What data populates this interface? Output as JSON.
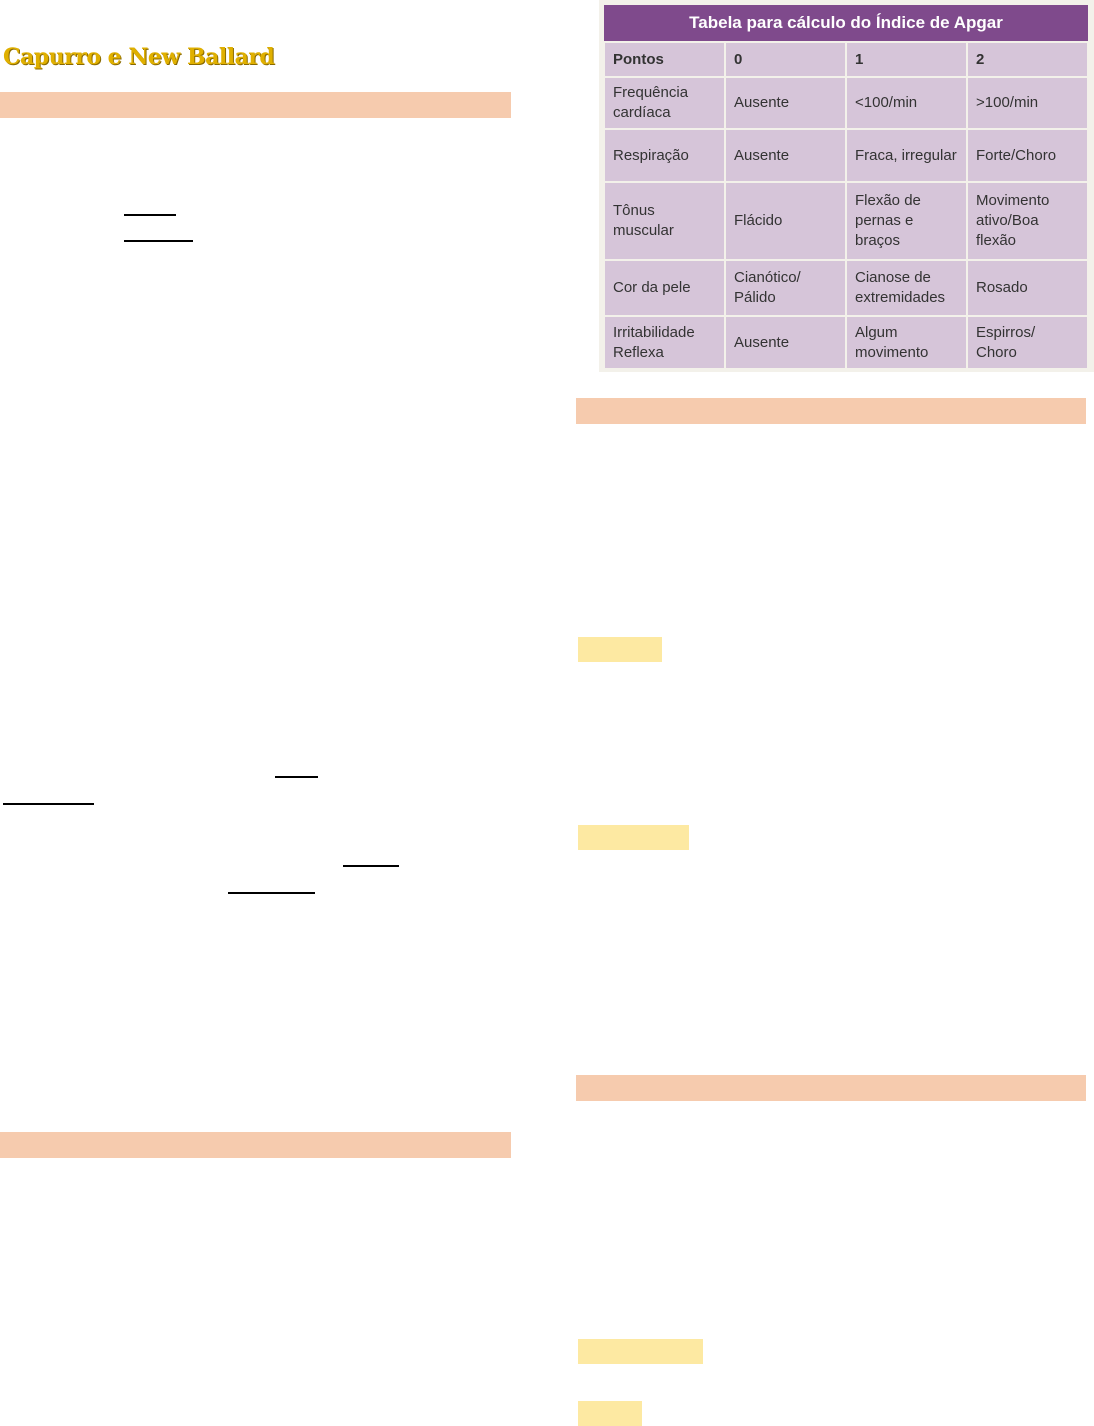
{
  "title": "Capurro e New Ballard",
  "apgar_table": {
    "caption": "Tabela para cálculo do Índice de Apgar",
    "headers": [
      "Pontos",
      "0",
      "1",
      "2"
    ],
    "rows": [
      [
        "Frequência cardíaca",
        "Ausente",
        "<100/min",
        ">100/min"
      ],
      [
        "Respiração",
        "Ausente",
        "Fraca, irregular",
        "Forte/Choro"
      ],
      [
        "Tônus muscular",
        "Flácido",
        "Flexão de pernas e braços",
        "Movimento ativo/Boa flexão"
      ],
      [
        "Cor da pele",
        "Cianótico/ Pálido",
        "Cianose de extremidades",
        "Rosado"
      ],
      [
        "Irritabilidade Reflexa",
        "Ausente",
        "Algum movimento",
        "Espirros/ Choro"
      ]
    ]
  },
  "colors": {
    "section_bar": "#f6cbae",
    "highlight": "#fde9a2",
    "table_header": "#7f4a8c",
    "table_cell": "#d6c5d9",
    "title": "#e0b000"
  }
}
